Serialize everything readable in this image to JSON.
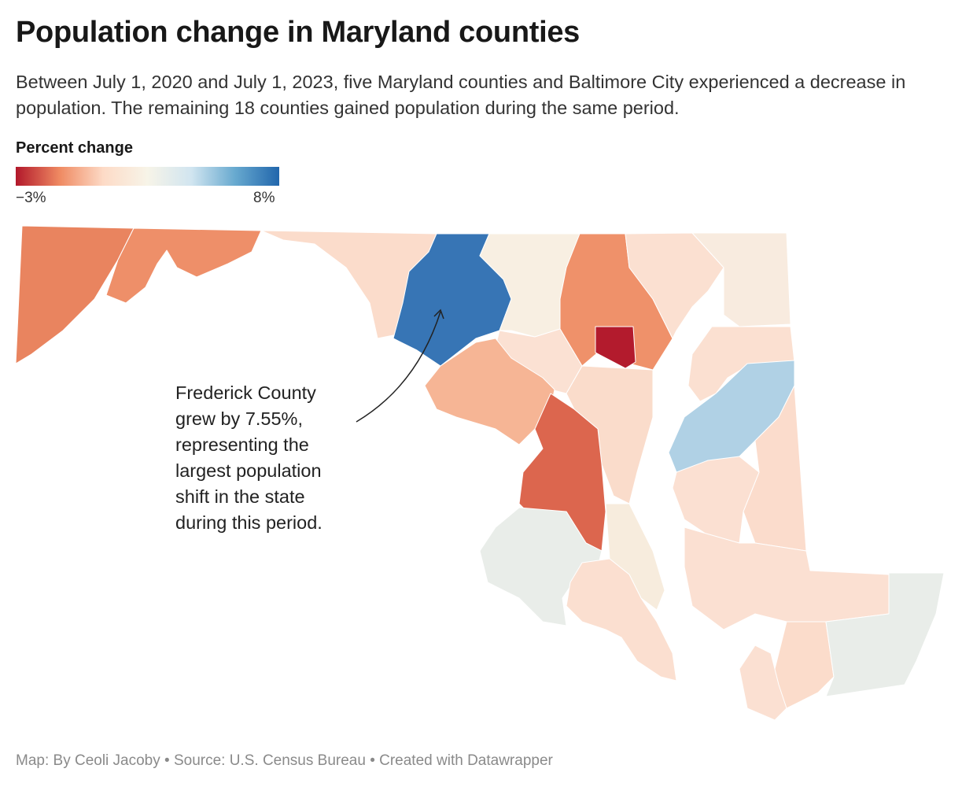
{
  "header": {
    "title": "Population change in Maryland counties",
    "subtitle": "Between July 1, 2020 and July 1, 2023, five Maryland counties and Baltimore City experienced a decrease in population. The remaining 18 counties gained population during the same period."
  },
  "legend": {
    "title": "Percent change",
    "min_label": "−3%",
    "max_label": "8%",
    "min_value": -3,
    "max_value": 8,
    "gradient_colors": [
      "#b2182b",
      "#ef8a62",
      "#fddbc7",
      "#f7f4e8",
      "#d1e5f0",
      "#67a9cf",
      "#2166ac"
    ]
  },
  "annotation": {
    "text": "Frederick County\ngrew by 7.55%,\nrepresenting the\nlargest population\nshift in the state\nduring this period."
  },
  "region_fills": {
    "garrett": "#e9845f",
    "allegany": "#ee8f69",
    "washington": "#fbdccb",
    "frederick": "#3775b5",
    "carroll": "#f8efe2",
    "baltimore-county": "#ef916a",
    "baltimore-city": "#b31b2d",
    "harford": "#fbe0d1",
    "cecil": "#f8ebdf",
    "howard": "#fbe1d3",
    "montgomery": "#f6b595",
    "anne-arundel": "#fadccb",
    "prince-georges": "#dc664e",
    "charles": "#e9ede9",
    "calvert": "#f7ecdd",
    "st-marys": "#fbdfd0",
    "kent": "#fbe0d1",
    "queen-annes": "#b0d1e5",
    "caroline": "#fbdccc",
    "talbot": "#fbe0d2",
    "dorchester": "#fbe0d2",
    "wicomico": "#fbdccb",
    "somerset": "#fbe0d2",
    "worcester": "#e9ede9"
  },
  "footer": {
    "credit": "Map: By Ceoli Jacoby • Source: U.S. Census Bureau • Created with Datawrapper"
  }
}
